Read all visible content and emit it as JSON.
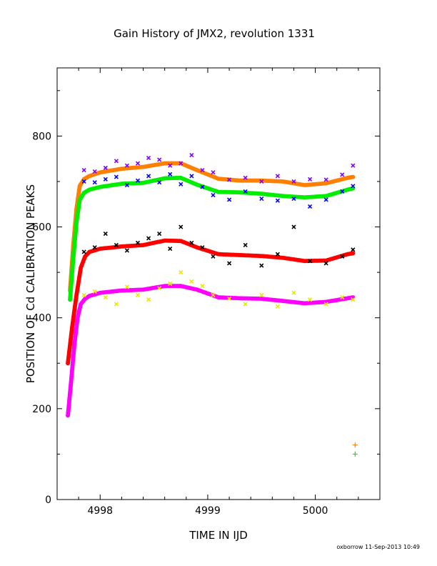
{
  "chart_data": {
    "type": "scatter",
    "title": "Gain History of JMX2, revolution 1331",
    "xlabel": "TIME IN IJD",
    "ylabel": "POSITION OF Cd CALIBRATION PEAKS",
    "xlim": [
      4997.6,
      5000.6
    ],
    "ylim": [
      0,
      950
    ],
    "x_ticks": [
      4998,
      4999,
      5000
    ],
    "y_ticks": [
      0,
      200,
      400,
      600,
      800
    ],
    "grid": false,
    "footer": "oxborrow 11-Sep-2013 10:49",
    "series": [
      {
        "color": "#ff8000",
        "marker": "dot",
        "x": [
          4997.72,
          4997.75,
          4997.78,
          4997.81,
          4997.85,
          4997.9,
          4998.0,
          4998.2,
          4998.4,
          4998.6,
          4998.75,
          4998.9,
          4999.1,
          4999.3,
          4999.5,
          4999.7,
          4999.9,
          5000.1,
          5000.3,
          5000.35
        ],
        "y": [
          460,
          560,
          640,
          690,
          705,
          712,
          720,
          728,
          732,
          740,
          740,
          725,
          706,
          702,
          702,
          700,
          692,
          696,
          708,
          710
        ]
      },
      {
        "color": "#00ee00",
        "marker": "dot",
        "x": [
          4997.72,
          4997.75,
          4997.78,
          4997.81,
          4997.85,
          4997.9,
          4998.0,
          4998.2,
          4998.4,
          4998.6,
          4998.75,
          4998.9,
          4999.1,
          4999.3,
          4999.5,
          4999.7,
          4999.9,
          5000.1,
          5000.3,
          5000.35
        ],
        "y": [
          440,
          530,
          610,
          660,
          675,
          682,
          688,
          695,
          697,
          707,
          708,
          693,
          677,
          676,
          673,
          668,
          665,
          668,
          682,
          685
        ]
      },
      {
        "color": "#ff0000",
        "marker": "dot",
        "x": [
          4997.7,
          4997.74,
          4997.78,
          4997.82,
          4997.86,
          4997.9,
          4998.0,
          4998.2,
          4998.4,
          4998.6,
          4998.75,
          4998.9,
          4999.1,
          4999.3,
          4999.5,
          4999.7,
          4999.9,
          5000.1,
          5000.3,
          5000.35
        ],
        "y": [
          300,
          380,
          450,
          510,
          535,
          545,
          552,
          557,
          560,
          570,
          569,
          555,
          540,
          538,
          536,
          532,
          525,
          526,
          540,
          542
        ]
      },
      {
        "color": "#ff00ff",
        "marker": "dot",
        "x": [
          4997.7,
          4997.73,
          4997.76,
          4997.79,
          4997.82,
          4997.86,
          4997.9,
          4998.0,
          4998.2,
          4998.4,
          4998.6,
          4998.75,
          4998.9,
          4999.1,
          4999.3,
          4999.5,
          4999.7,
          4999.9,
          5000.1,
          5000.3,
          5000.35
        ],
        "y": [
          185,
          260,
          340,
          400,
          430,
          442,
          448,
          455,
          460,
          462,
          470,
          470,
          462,
          445,
          443,
          442,
          437,
          432,
          435,
          443,
          445
        ]
      },
      {
        "color": "#8000ff",
        "marker": "x",
        "x": [
          4997.85,
          4997.95,
          4998.05,
          4998.15,
          4998.25,
          4998.35,
          4998.45,
          4998.55,
          4998.65,
          4998.75,
          4998.85,
          4998.95,
          4999.05,
          4999.2,
          4999.35,
          4999.5,
          4999.65,
          4999.8,
          4999.95,
          5000.1,
          5000.25,
          5000.35
        ],
        "y": [
          725,
          722,
          730,
          745,
          735,
          740,
          752,
          748,
          735,
          740,
          758,
          725,
          720,
          704,
          708,
          700,
          712,
          700,
          705,
          704,
          715,
          735
        ]
      },
      {
        "color": "#0000ff",
        "marker": "x",
        "x": [
          4997.85,
          4997.95,
          4998.05,
          4998.15,
          4998.25,
          4998.35,
          4998.45,
          4998.55,
          4998.65,
          4998.75,
          4998.85,
          4998.95,
          4999.05,
          4999.2,
          4999.35,
          4999.5,
          4999.65,
          4999.8,
          4999.95,
          5000.1,
          5000.25,
          5000.35
        ],
        "y": [
          700,
          698,
          705,
          710,
          692,
          702,
          712,
          698,
          716,
          694,
          712,
          688,
          670,
          660,
          678,
          662,
          658,
          662,
          645,
          660,
          678,
          690
        ]
      },
      {
        "color": "#000000",
        "marker": "x",
        "x": [
          4997.85,
          4997.95,
          4998.05,
          4998.15,
          4998.25,
          4998.35,
          4998.45,
          4998.55,
          4998.65,
          4998.75,
          4998.85,
          4998.95,
          4999.05,
          4999.2,
          4999.35,
          4999.5,
          4999.65,
          4999.8,
          4999.95,
          5000.1,
          5000.25,
          5000.35
        ],
        "y": [
          545,
          555,
          585,
          560,
          548,
          565,
          575,
          585,
          552,
          600,
          565,
          555,
          535,
          520,
          560,
          515,
          540,
          600,
          525,
          520,
          535,
          550
        ]
      },
      {
        "color": "#e8e800",
        "marker": "x",
        "x": [
          4997.85,
          4997.95,
          4998.05,
          4998.15,
          4998.25,
          4998.35,
          4998.45,
          4998.55,
          4998.65,
          4998.75,
          4998.85,
          4998.95,
          4999.05,
          4999.2,
          4999.35,
          4999.5,
          4999.65,
          4999.8,
          4999.95,
          5000.1,
          5000.25,
          5000.35
        ],
        "y": [
          450,
          458,
          445,
          430,
          468,
          450,
          440,
          465,
          475,
          500,
          480,
          470,
          450,
          442,
          430,
          450,
          425,
          455,
          440,
          430,
          445,
          440
        ]
      },
      {
        "color": "#ff8000",
        "marker": "plus",
        "x": [
          5000.37
        ],
        "y": [
          120
        ]
      },
      {
        "color": "#00ee00",
        "marker": "plus",
        "x": [
          5000.37
        ],
        "y": [
          100
        ]
      }
    ]
  }
}
